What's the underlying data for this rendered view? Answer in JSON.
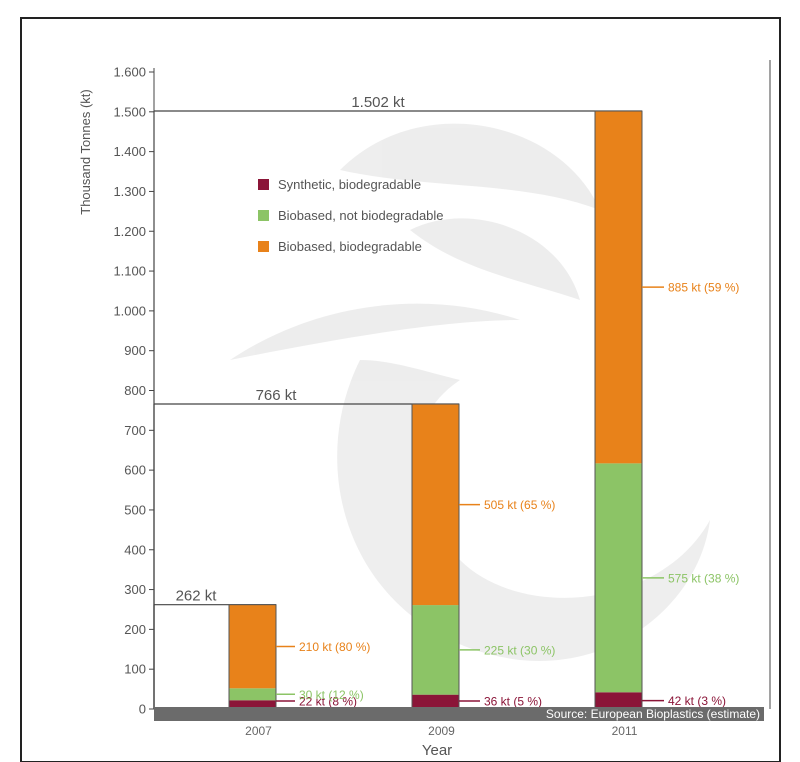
{
  "chart_data": {
    "type": "bar",
    "stacked": true,
    "categories": [
      "2007",
      "2009",
      "2011"
    ],
    "series": [
      {
        "name": "Synthetic, biodegradable",
        "color": "#8b1538",
        "values": [
          22,
          36,
          42
        ]
      },
      {
        "name": "Biobased, not biodegradable",
        "color": "#8cc466",
        "values": [
          30,
          225,
          575
        ]
      },
      {
        "name": "Biobased, biodegradable",
        "color": "#e8821a",
        "values": [
          210,
          505,
          885
        ]
      }
    ],
    "segment_labels": [
      [
        "22 kt (8 %)",
        "36 kt (5 %)",
        "42 kt (3 %)"
      ],
      [
        "30 kt (12 %)",
        "225 kt (30 %)",
        "575 kt (38 %)"
      ],
      [
        "210 kt (80 %)",
        "505 kt (65 %)",
        "885 kt (59 %)"
      ]
    ],
    "label_colors": [
      "#8b1538",
      "#8cc466",
      "#e8821a"
    ],
    "totals": [
      "262 kt",
      "766 kt",
      "1.502 kt"
    ],
    "total_values": [
      262,
      766,
      1502
    ],
    "ylabel": "Thousand Tonnes (kt)",
    "xlabel": "Year",
    "ylim": [
      0,
      1600
    ],
    "yticks": [
      0,
      100,
      200,
      300,
      400,
      500,
      600,
      700,
      800,
      900,
      1000,
      1100,
      1200,
      1300,
      1400,
      1500,
      1600
    ],
    "ytick_labels": [
      "0",
      "100",
      "200",
      "300",
      "400",
      "500",
      "600",
      "700",
      "800",
      "900",
      "1.000",
      "1.100",
      "1.200",
      "1.300",
      "1.400",
      "1.500",
      "1.600"
    ],
    "legend_position": "upper-left",
    "source": "Source: European Bioplastics (estimate)",
    "grid": false
  }
}
